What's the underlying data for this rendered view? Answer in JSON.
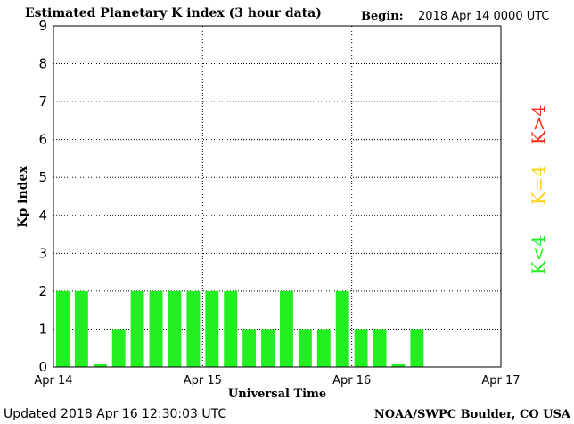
{
  "chart_data": {
    "type": "bar",
    "title": "Estimated Planetary K index (3 hour data)",
    "begin_label": "Begin:",
    "begin_value": "2018 Apr 14 0000 UTC",
    "xlabel": "Universal Time",
    "ylabel": "Kp index",
    "ylim": [
      0,
      9
    ],
    "y_ticks": [
      "0",
      "1",
      "2",
      "3",
      "4",
      "5",
      "6",
      "7",
      "8",
      "9"
    ],
    "x_tick_labels": [
      "Apr 14",
      "Apr 15",
      "Apr 16",
      "Apr 17"
    ],
    "grid": "dotted",
    "legend_placement": "right",
    "legend": [
      {
        "label": "K>4",
        "color": "#ff2a1a"
      },
      {
        "label": "K=4",
        "color": "#ffd21a"
      },
      {
        "label": "K<4",
        "color": "#22ee22"
      }
    ],
    "categories": [
      "Apr 14 00",
      "Apr 14 03",
      "Apr 14 06",
      "Apr 14 09",
      "Apr 14 12",
      "Apr 14 15",
      "Apr 14 18",
      "Apr 14 21",
      "Apr 15 00",
      "Apr 15 03",
      "Apr 15 06",
      "Apr 15 09",
      "Apr 15 12",
      "Apr 15 15",
      "Apr 15 18",
      "Apr 15 21",
      "Apr 16 00",
      "Apr 16 03",
      "Apr 16 06",
      "Apr 16 09"
    ],
    "values": [
      2,
      2,
      0,
      1,
      2,
      2,
      2,
      2,
      2,
      2,
      1,
      1,
      2,
      1,
      1,
      2,
      1,
      1,
      0,
      1
    ],
    "total_slots": 24,
    "bar_color": "#22ee22"
  },
  "footer": {
    "updated": "Updated 2018 Apr 16 12:30:03 UTC",
    "source": "NOAA/SWPC Boulder, CO USA"
  }
}
